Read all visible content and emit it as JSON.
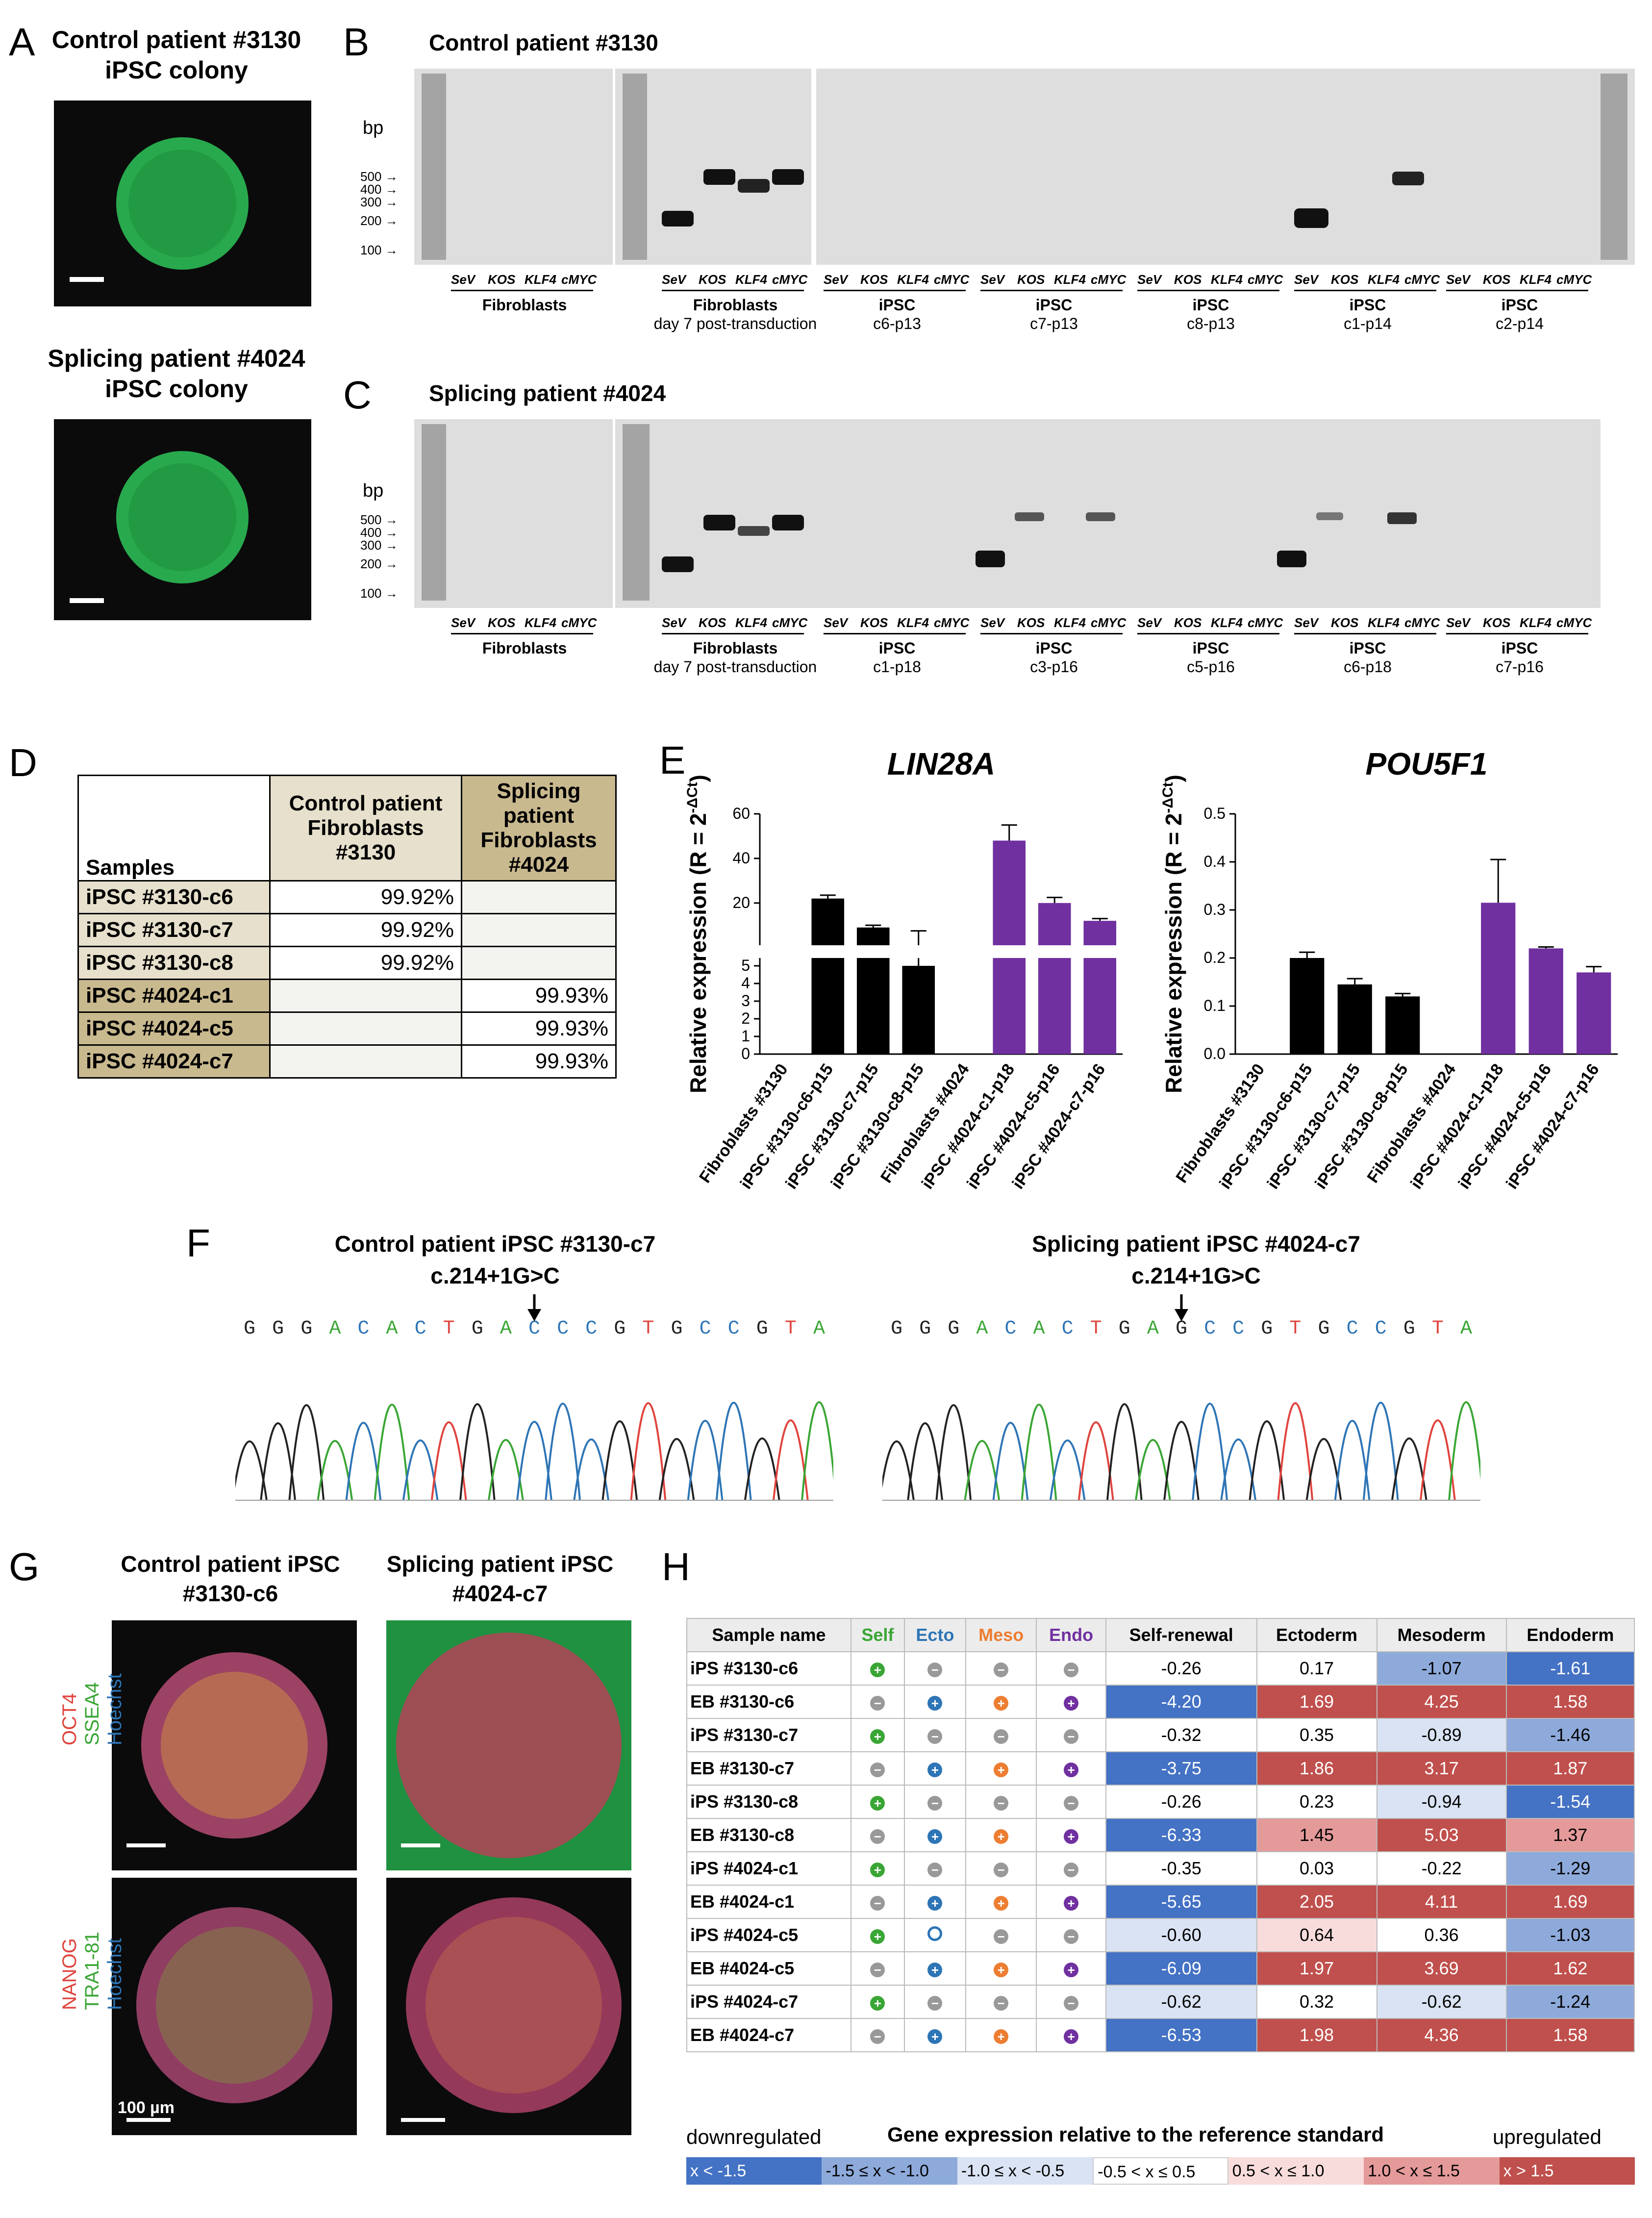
{
  "panelA": {
    "label": "A",
    "colony1_title": "Control patient #3130 iPSC colony",
    "colony2_title": "Splicing patient #4024 iPSC colony"
  },
  "panelB": {
    "label": "B",
    "title": "Control patient #3130",
    "bp_label": "bp",
    "sizes": [
      "500",
      "400",
      "300",
      "200",
      "100"
    ],
    "lanes": [
      "SeV",
      "KOS",
      "KLF4",
      "cMYC"
    ],
    "groups": [
      {
        "name": "Fibroblasts",
        "sub": ""
      },
      {
        "name": "Fibroblasts",
        "sub": "day 7 post-transduction"
      },
      {
        "name": "iPSC",
        "sub": "c6-p13"
      },
      {
        "name": "iPSC",
        "sub": "c7-p13"
      },
      {
        "name": "iPSC",
        "sub": "c8-p13"
      },
      {
        "name": "iPSC",
        "sub": "c1-p14"
      },
      {
        "name": "iPSC",
        "sub": "c2-p14"
      }
    ]
  },
  "panelC": {
    "label": "C",
    "title": "Splicing patient #4024",
    "bp_label": "bp",
    "sizes": [
      "500",
      "400",
      "300",
      "200",
      "100"
    ],
    "lanes": [
      "SeV",
      "KOS",
      "KLF4",
      "cMYC"
    ],
    "groups": [
      {
        "name": "Fibroblasts",
        "sub": ""
      },
      {
        "name": "Fibroblasts",
        "sub": "day 7 post-transduction"
      },
      {
        "name": "iPSC",
        "sub": "c1-p18"
      },
      {
        "name": "iPSC",
        "sub": "c3-p16"
      },
      {
        "name": "iPSC",
        "sub": "c5-p16"
      },
      {
        "name": "iPSC",
        "sub": "c6-p18"
      },
      {
        "name": "iPSC",
        "sub": "c7-p16"
      }
    ]
  },
  "panelD": {
    "label": "D",
    "header_samples": "Samples",
    "header_control": "Control patient Fibroblasts #3130",
    "header_splicing": "Splicing patient Fibroblasts #4024",
    "rows": [
      {
        "name": "iPSC #3130-c6",
        "control": "99.92%",
        "splicing": ""
      },
      {
        "name": "iPSC #3130-c7",
        "control": "99.92%",
        "splicing": ""
      },
      {
        "name": "iPSC #3130-c8",
        "control": "99.92%",
        "splicing": ""
      },
      {
        "name": "iPSC #4024-c1",
        "control": "",
        "splicing": "99.93%"
      },
      {
        "name": "iPSC #4024-c5",
        "control": "",
        "splicing": "99.93%"
      },
      {
        "name": "iPSC #4024-c7",
        "control": "",
        "splicing": "99.93%"
      }
    ]
  },
  "chart_data": [
    {
      "type": "bar",
      "title": "LIN28A",
      "ylabel": "Relative expression (R = 2^-ΔCt)",
      "categories": [
        "Fibroblasts #3130",
        "iPSC #3130-c6-p15",
        "iPSC #3130-c7-p15",
        "iPSC #3130-c8-p15",
        "Fibroblasts #4024",
        "iPSC #4024-c1-p18",
        "iPSC #4024-c5-p16",
        "iPSC #4024-c7-p16"
      ],
      "values": [
        0,
        22,
        9,
        5,
        0,
        48,
        20,
        12
      ],
      "errors": [
        0,
        1.5,
        1,
        2.5,
        0,
        7,
        2.5,
        1
      ],
      "colors": [
        "#000000",
        "#000000",
        "#000000",
        "#000000",
        "#7030a0",
        "#7030a0",
        "#7030a0",
        "#7030a0"
      ],
      "axis_break": true,
      "lower_ticks": [
        "0",
        "1",
        "2",
        "3",
        "4",
        "5"
      ],
      "upper_ticks": [
        "20",
        "40",
        "60"
      ],
      "ylim": [
        0,
        60
      ]
    },
    {
      "type": "bar",
      "title": "POU5F1",
      "ylabel": "Relative expression (R = 2^-ΔCt)",
      "categories": [
        "Fibroblasts #3130",
        "iPSC #3130-c6-p15",
        "iPSC #3130-c7-p15",
        "iPSC #3130-c8-p15",
        "Fibroblasts #4024",
        "iPSC #4024-c1-p18",
        "iPSC #4024-c5-p16",
        "iPSC #4024-c7-p16"
      ],
      "values": [
        0,
        0.2,
        0.145,
        0.12,
        0,
        0.315,
        0.22,
        0.17
      ],
      "errors": [
        0,
        0.012,
        0.012,
        0.006,
        0,
        0.09,
        0.003,
        0.012
      ],
      "colors": [
        "#000000",
        "#000000",
        "#000000",
        "#000000",
        "#7030a0",
        "#7030a0",
        "#7030a0",
        "#7030a0"
      ],
      "ticks": [
        "0.0",
        "0.1",
        "0.2",
        "0.3",
        "0.4",
        "0.5"
      ],
      "ylim": [
        0,
        0.5
      ]
    }
  ],
  "chart_text": {
    "ylabel_main": "Relative expression (R = 2",
    "ylabel_sup": "-ΔCt",
    "ylabel_end": ")"
  },
  "panelF": {
    "label": "F",
    "left_title": "Control patient iPSC #3130-c7",
    "left_variant": "c.214+1G>C",
    "left_seq": "GGGACACTGACCCGTGCCGTA",
    "right_title": "Splicing patient iPSC #4024-c7",
    "right_variant": "c.214+1G>C",
    "right_seq": "GGGACACTGAGCCGTGCCGTA"
  },
  "panelG": {
    "label": "G",
    "col1": "Control patient iPSC #3130-c6",
    "col2": "Splicing patient iPSC #4024-c7",
    "row1_labels": [
      "OCT4",
      "SSEA4",
      "Hoechst"
    ],
    "row2_labels": [
      "NANOG",
      "TRA1-81",
      "Hoechst"
    ],
    "scale": "100 µm"
  },
  "panelH": {
    "label": "H",
    "headers": [
      "Sample name",
      "Self",
      "Ecto",
      "Meso",
      "Endo",
      "Self-renewal",
      "Ectoderm",
      "Mesoderm",
      "Endoderm"
    ],
    "header_colors": [
      "#000000",
      "#3aa635",
      "#2e75b6",
      "#ed7d31",
      "#7030a0"
    ],
    "rows": [
      {
        "name": "iPS #3130-c6",
        "icons": [
          "+",
          "-",
          "-",
          "-"
        ],
        "vals": [
          "-0.26",
          "0.17",
          "-1.07",
          "-1.61"
        ]
      },
      {
        "name": "EB #3130-c6",
        "icons": [
          "-",
          "+",
          "+",
          "+"
        ],
        "vals": [
          "-4.20",
          "1.69",
          "4.25",
          "1.58"
        ]
      },
      {
        "name": "iPS #3130-c7",
        "icons": [
          "+",
          "-",
          "-",
          "-"
        ],
        "vals": [
          "-0.32",
          "0.35",
          "-0.89",
          "-1.46"
        ]
      },
      {
        "name": "EB #3130-c7",
        "icons": [
          "-",
          "+",
          "+",
          "+"
        ],
        "vals": [
          "-3.75",
          "1.86",
          "3.17",
          "1.87"
        ]
      },
      {
        "name": "iPS #3130-c8",
        "icons": [
          "+",
          "-",
          "-",
          "-"
        ],
        "vals": [
          "-0.26",
          "0.23",
          "-0.94",
          "-1.54"
        ]
      },
      {
        "name": "EB #3130-c8",
        "icons": [
          "-",
          "+",
          "+",
          "+"
        ],
        "vals": [
          "-6.33",
          "1.45",
          "5.03",
          "1.37"
        ]
      },
      {
        "name": "iPS #4024-c1",
        "icons": [
          "+",
          "-",
          "-",
          "-"
        ],
        "vals": [
          "-0.35",
          "0.03",
          "-0.22",
          "-1.29"
        ]
      },
      {
        "name": "EB #4024-c1",
        "icons": [
          "-",
          "+",
          "+",
          "+"
        ],
        "vals": [
          "-5.65",
          "2.05",
          "4.11",
          "1.69"
        ]
      },
      {
        "name": "iPS #4024-c5",
        "icons": [
          "+",
          "o",
          "-",
          "-"
        ],
        "vals": [
          "-0.60",
          "0.64",
          "0.36",
          "-1.03"
        ]
      },
      {
        "name": "EB #4024-c5",
        "icons": [
          "-",
          "+",
          "+",
          "+"
        ],
        "vals": [
          "-6.09",
          "1.97",
          "3.69",
          "1.62"
        ]
      },
      {
        "name": "iPS #4024-c7",
        "icons": [
          "+",
          "-",
          "-",
          "-"
        ],
        "vals": [
          "-0.62",
          "0.32",
          "-0.62",
          "-1.24"
        ]
      },
      {
        "name": "EB #4024-c7",
        "icons": [
          "-",
          "+",
          "+",
          "+"
        ],
        "vals": [
          "-6.53",
          "1.98",
          "4.36",
          "1.58"
        ]
      }
    ],
    "legend_title": "Gene expression relative to the reference standard",
    "legend_down": "downregulated",
    "legend_up": "upregulated",
    "legend_bins": [
      "x < -1.5",
      "-1.5 ≤ x < -1.0",
      "-1.0 ≤ x < -0.5",
      "-0.5 < x ≤ 0.5",
      "0.5 < x ≤ 1.0",
      "1.0 < x ≤ 1.5",
      "x > 1.5"
    ],
    "legend_colors": [
      "#4472c4",
      "#8eaadb",
      "#dae3f3",
      "#ffffff",
      "#f8dcdc",
      "#e59a9a",
      "#c0504d"
    ]
  }
}
